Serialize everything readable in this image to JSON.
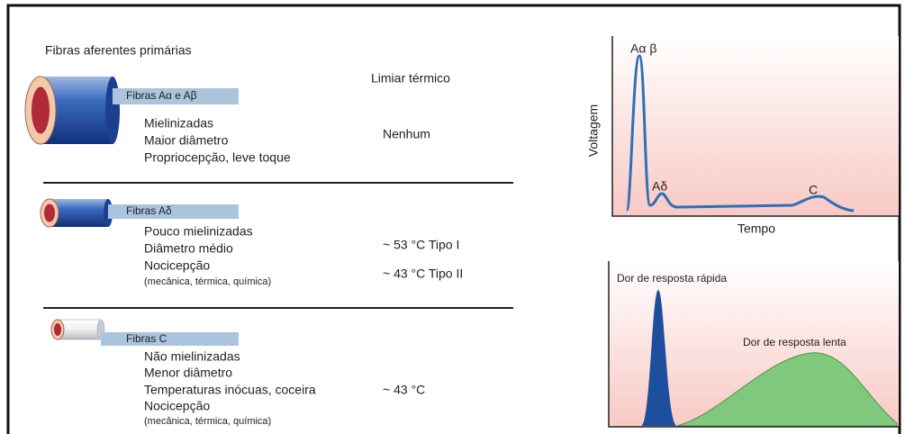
{
  "header": {
    "title": "Fibras aferentes primárias",
    "threshold_heading": "Limiar térmico"
  },
  "fibers": [
    {
      "label": "Fibras Aα e Aβ",
      "properties": [
        "Mielinizadas",
        "Maior diâmetro",
        "Propriocepção, leve toque"
      ],
      "thresholds": [
        "Nenhum"
      ]
    },
    {
      "label": "Fibras Aδ",
      "properties": [
        "Pouco mielinizadas",
        "Diâmetro médio",
        "Nocicepção"
      ],
      "note": "(mecânica, térmica, química)",
      "thresholds": [
        "~ 53 °C Tipo I",
        "~ 43 °C Tipo II"
      ]
    },
    {
      "label": "Fibras C",
      "properties": [
        "Não mielinizadas",
        "Menor diâmetro",
        "Temperaturas inócuas, coceira",
        "Nocicepção"
      ],
      "note": "(mecânica, térmica, química)",
      "thresholds": [
        "~ 43 °C"
      ]
    }
  ],
  "compound_action_potential": {
    "y_label": "Voltagem",
    "x_label": "Tempo",
    "peak_labels": [
      "Aα β",
      "Aδ",
      "C"
    ]
  },
  "pain_response": {
    "labels": [
      "Dor de resposta rápida",
      "Dor de resposta lenta"
    ]
  }
}
